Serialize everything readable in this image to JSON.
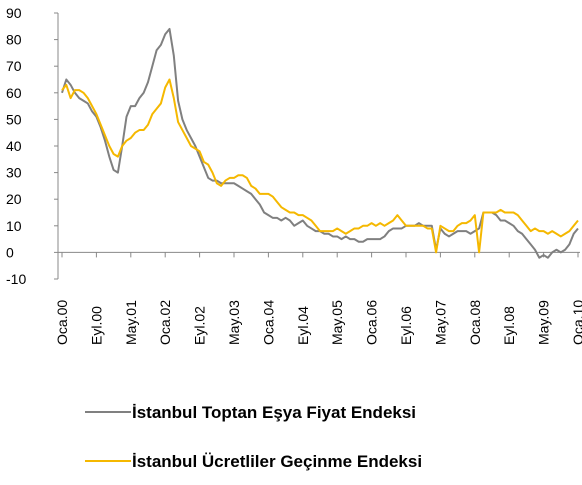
{
  "chart_data": {
    "type": "line",
    "categories": [
      "Oca.00",
      null,
      null,
      null,
      null,
      null,
      null,
      null,
      "Eyl.00",
      null,
      null,
      null,
      null,
      null,
      null,
      null,
      "May.01",
      null,
      null,
      null,
      null,
      null,
      null,
      null,
      "Oca.02",
      null,
      null,
      null,
      null,
      null,
      null,
      null,
      "Eyl.02",
      null,
      null,
      null,
      null,
      null,
      null,
      null,
      "May.03",
      null,
      null,
      null,
      null,
      null,
      null,
      null,
      "Oca.04",
      null,
      null,
      null,
      null,
      null,
      null,
      null,
      "Eyl.04",
      null,
      null,
      null,
      null,
      null,
      null,
      null,
      "May.05",
      null,
      null,
      null,
      null,
      null,
      null,
      null,
      "Oca.06",
      null,
      null,
      null,
      null,
      null,
      null,
      null,
      "Eyl.06",
      null,
      null,
      null,
      null,
      null,
      null,
      null,
      "May.07",
      null,
      null,
      null,
      null,
      null,
      null,
      null,
      "Oca.08",
      null,
      null,
      null,
      null,
      null,
      null,
      null,
      "Eyl.08",
      null,
      null,
      null,
      null,
      null,
      null,
      null,
      "May.09",
      null,
      null,
      null,
      null,
      null,
      null,
      null,
      "Oca.10"
    ],
    "series": [
      {
        "name": "İstanbul Toptan Eşya Fiyat Endeksi",
        "color": "#808080",
        "values": [
          60,
          65,
          63,
          60,
          58,
          57,
          56,
          53,
          51,
          47,
          42,
          36,
          31,
          30,
          40,
          51,
          55,
          55,
          58,
          60,
          64,
          70,
          76,
          78,
          82,
          84,
          74,
          57,
          50,
          46,
          43,
          40,
          36,
          32,
          28,
          27,
          27,
          26,
          26,
          26,
          26,
          25,
          24,
          23,
          22,
          20,
          18,
          15,
          14,
          13,
          13,
          12,
          13,
          12,
          10,
          11,
          12,
          10,
          9,
          8,
          8,
          7,
          7,
          6,
          6,
          5,
          6,
          5,
          5,
          4,
          4,
          5,
          5,
          5,
          5,
          6,
          8,
          9,
          9,
          9,
          10,
          10,
          10,
          11,
          10,
          10,
          10,
          1,
          9,
          7,
          6,
          7,
          8,
          8,
          8,
          7,
          8,
          9,
          15,
          15,
          15,
          14,
          12,
          12,
          11,
          10,
          8,
          7,
          5,
          3,
          1,
          -2,
          -1,
          -2,
          0,
          1,
          0,
          1,
          3,
          7,
          9
        ]
      },
      {
        "name": "İstanbul Ücretliler Geçinme Endeksi",
        "color": "#f5b800",
        "values": [
          61,
          63,
          58,
          61,
          61,
          60,
          58,
          55,
          52,
          48,
          44,
          40,
          37,
          36,
          40,
          42,
          43,
          45,
          46,
          46,
          48,
          52,
          54,
          56,
          62,
          65,
          58,
          49,
          46,
          43,
          40,
          39,
          38,
          34,
          33,
          30,
          26,
          25,
          27,
          28,
          28,
          29,
          29,
          28,
          25,
          24,
          22,
          22,
          22,
          21,
          19,
          17,
          16,
          15,
          15,
          14,
          14,
          13,
          12,
          10,
          8,
          8,
          8,
          8,
          9,
          8,
          7,
          8,
          9,
          9,
          10,
          10,
          11,
          10,
          11,
          10,
          11,
          12,
          14,
          12,
          10,
          10,
          10,
          10,
          10,
          9,
          9,
          0,
          10,
          9,
          8,
          8,
          10,
          11,
          11,
          12,
          14,
          0,
          15,
          15,
          15,
          15,
          16,
          15,
          15,
          15,
          14,
          12,
          10,
          8,
          9,
          8,
          8,
          7,
          8,
          7,
          6,
          7,
          8,
          10,
          12
        ]
      }
    ],
    "ylim": [
      -10,
      90
    ],
    "yticks": [
      -10,
      0,
      10,
      20,
      30,
      40,
      50,
      60,
      70,
      80,
      90
    ],
    "grid": false
  }
}
